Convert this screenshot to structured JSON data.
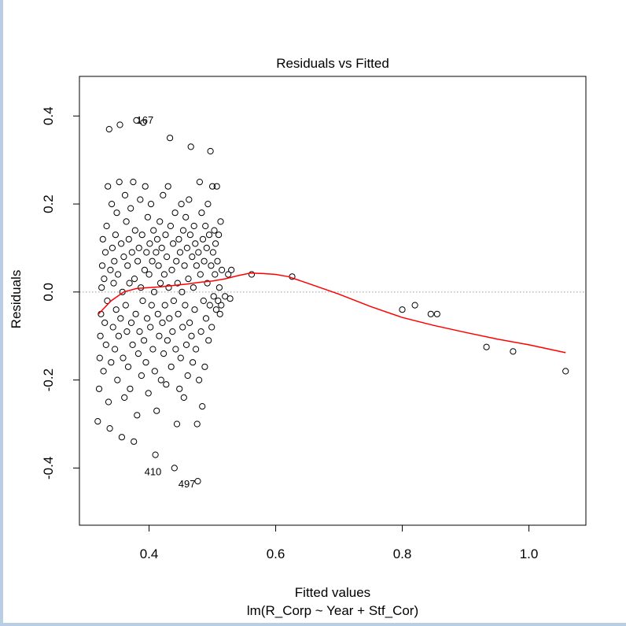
{
  "chart_data": {
    "type": "scatter",
    "title": "Residuals vs Fitted",
    "xlabel": "Fitted values",
    "subtitle": "lm(R_Corp ~ Year + Stf_Cor)",
    "ylabel": "Residuals",
    "xlim": [
      0.29,
      1.09
    ],
    "ylim": [
      -0.53,
      0.49
    ],
    "x_ticks": [
      0.4,
      0.6,
      0.8,
      1.0
    ],
    "x_tick_labels": [
      "0.4",
      "0.6",
      "0.8",
      "1.0"
    ],
    "y_ticks": [
      -0.4,
      -0.2,
      0.0,
      0.2,
      0.4
    ],
    "y_tick_labels": [
      "-0.4",
      "-0.2",
      "0.0",
      "0.2",
      "0.4"
    ],
    "reference_line_y": 0,
    "colors": {
      "points": "#000000",
      "smoother": "#ff0000",
      "reference": "#999999",
      "frame": "#b9cde5"
    },
    "annotations": [
      {
        "label": "167",
        "x": 0.39,
        "y": 0.39
      },
      {
        "label": "410",
        "x": 0.41,
        "y": -0.37
      },
      {
        "label": "497",
        "x": 0.477,
        "y": -0.43
      }
    ],
    "smoother": [
      [
        0.32,
        -0.05
      ],
      [
        0.34,
        -0.02
      ],
      [
        0.36,
        0.0
      ],
      [
        0.38,
        0.008
      ],
      [
        0.4,
        0.01
      ],
      [
        0.42,
        0.012
      ],
      [
        0.44,
        0.015
      ],
      [
        0.46,
        0.018
      ],
      [
        0.48,
        0.022
      ],
      [
        0.5,
        0.025
      ],
      [
        0.52,
        0.03
      ],
      [
        0.54,
        0.037
      ],
      [
        0.56,
        0.043
      ],
      [
        0.58,
        0.042
      ],
      [
        0.6,
        0.04
      ],
      [
        0.62,
        0.035
      ],
      [
        0.65,
        0.02
      ],
      [
        0.7,
        -0.005
      ],
      [
        0.75,
        -0.033
      ],
      [
        0.8,
        -0.058
      ],
      [
        0.85,
        -0.076
      ],
      [
        0.9,
        -0.092
      ],
      [
        0.95,
        -0.107
      ],
      [
        1.0,
        -0.12
      ],
      [
        1.058,
        -0.138
      ]
    ],
    "points": [
      [
        0.319,
        -0.294
      ],
      [
        0.321,
        -0.22
      ],
      [
        0.322,
        -0.15
      ],
      [
        0.323,
        -0.1
      ],
      [
        0.324,
        -0.05
      ],
      [
        0.325,
        0.01
      ],
      [
        0.326,
        0.06
      ],
      [
        0.327,
        0.12
      ],
      [
        0.328,
        -0.18
      ],
      [
        0.329,
        0.03
      ],
      [
        0.33,
        -0.07
      ],
      [
        0.331,
        0.09
      ],
      [
        0.332,
        -0.12
      ],
      [
        0.333,
        0.15
      ],
      [
        0.334,
        -0.02
      ],
      [
        0.335,
        0.24
      ],
      [
        0.336,
        -0.25
      ],
      [
        0.337,
        0.37
      ],
      [
        0.338,
        -0.31
      ],
      [
        0.339,
        0.05
      ],
      [
        0.34,
        -0.16
      ],
      [
        0.341,
        0.2
      ],
      [
        0.342,
        0.1
      ],
      [
        0.343,
        -0.08
      ],
      [
        0.344,
        0.02
      ],
      [
        0.345,
        0.07
      ],
      [
        0.346,
        -0.13
      ],
      [
        0.347,
        0.13
      ],
      [
        0.348,
        -0.04
      ],
      [
        0.349,
        0.18
      ],
      [
        0.35,
        -0.2
      ],
      [
        0.351,
        0.04
      ],
      [
        0.352,
        -0.1
      ],
      [
        0.353,
        0.25
      ],
      [
        0.354,
        0.38
      ],
      [
        0.355,
        -0.06
      ],
      [
        0.356,
        0.11
      ],
      [
        0.357,
        -0.33
      ],
      [
        0.358,
        0.0
      ],
      [
        0.359,
        -0.15
      ],
      [
        0.36,
        0.08
      ],
      [
        0.361,
        -0.24
      ],
      [
        0.362,
        0.22
      ],
      [
        0.363,
        -0.03
      ],
      [
        0.364,
        0.16
      ],
      [
        0.365,
        -0.09
      ],
      [
        0.366,
        0.06
      ],
      [
        0.367,
        -0.17
      ],
      [
        0.368,
        0.12
      ],
      [
        0.369,
        0.02
      ],
      [
        0.37,
        -0.22
      ],
      [
        0.371,
        0.19
      ],
      [
        0.372,
        -0.07
      ],
      [
        0.373,
        0.09
      ],
      [
        0.374,
        -0.12
      ],
      [
        0.375,
        0.25
      ],
      [
        0.376,
        -0.34
      ],
      [
        0.377,
        0.03
      ],
      [
        0.378,
        0.14
      ],
      [
        0.379,
        -0.05
      ],
      [
        0.38,
        0.39
      ],
      [
        0.381,
        -0.28
      ],
      [
        0.382,
        0.07
      ],
      [
        0.383,
        -0.14
      ],
      [
        0.384,
        0.1
      ],
      [
        0.385,
        -0.09
      ],
      [
        0.386,
        0.21
      ],
      [
        0.387,
        0.01
      ],
      [
        0.388,
        -0.19
      ],
      [
        0.389,
        0.13
      ],
      [
        0.39,
        -0.02
      ],
      [
        0.391,
        0.385
      ],
      [
        0.392,
        -0.11
      ],
      [
        0.393,
        0.05
      ],
      [
        0.394,
        0.24
      ],
      [
        0.395,
        -0.16
      ],
      [
        0.396,
        0.09
      ],
      [
        0.397,
        -0.06
      ],
      [
        0.398,
        0.17
      ],
      [
        0.399,
        -0.23
      ],
      [
        0.4,
        0.04
      ],
      [
        0.401,
        0.11
      ],
      [
        0.402,
        -0.08
      ],
      [
        0.403,
        0.2
      ],
      [
        0.404,
        -0.03
      ],
      [
        0.405,
        0.07
      ],
      [
        0.406,
        -0.13
      ],
      [
        0.407,
        0.14
      ],
      [
        0.408,
        0.0
      ],
      [
        0.409,
        -0.18
      ],
      [
        0.41,
        -0.37
      ],
      [
        0.411,
        0.09
      ],
      [
        0.412,
        -0.27
      ],
      [
        0.413,
        0.12
      ],
      [
        0.414,
        -0.05
      ],
      [
        0.415,
        0.06
      ],
      [
        0.416,
        -0.1
      ],
      [
        0.417,
        0.16
      ],
      [
        0.418,
        0.02
      ],
      [
        0.419,
        -0.2
      ],
      [
        0.42,
        0.1
      ],
      [
        0.421,
        -0.07
      ],
      [
        0.422,
        0.22
      ],
      [
        0.423,
        -0.14
      ],
      [
        0.424,
        0.04
      ],
      [
        0.425,
        -0.03
      ],
      [
        0.426,
        0.13
      ],
      [
        0.427,
        -0.21
      ],
      [
        0.428,
        0.08
      ],
      [
        0.429,
        -0.11
      ],
      [
        0.43,
        0.24
      ],
      [
        0.431,
        0.01
      ],
      [
        0.432,
        -0.06
      ],
      [
        0.433,
        0.35
      ],
      [
        0.434,
        0.15
      ],
      [
        0.435,
        -0.17
      ],
      [
        0.436,
        0.05
      ],
      [
        0.437,
        -0.09
      ],
      [
        0.438,
        0.11
      ],
      [
        0.439,
        -0.02
      ],
      [
        0.44,
        -0.4
      ],
      [
        0.441,
        0.18
      ],
      [
        0.442,
        -0.13
      ],
      [
        0.443,
        0.07
      ],
      [
        0.444,
        -0.3
      ],
      [
        0.445,
        0.02
      ],
      [
        0.446,
        -0.05
      ],
      [
        0.447,
        0.12
      ],
      [
        0.448,
        -0.22
      ],
      [
        0.449,
        0.09
      ],
      [
        0.45,
        -0.15
      ],
      [
        0.451,
        0.2
      ],
      [
        0.452,
        0.0
      ],
      [
        0.453,
        -0.08
      ],
      [
        0.454,
        0.14
      ],
      [
        0.455,
        -0.24
      ],
      [
        0.456,
        0.06
      ],
      [
        0.457,
        -0.03
      ],
      [
        0.458,
        0.17
      ],
      [
        0.459,
        -0.12
      ],
      [
        0.46,
        0.1
      ],
      [
        0.461,
        -0.19
      ],
      [
        0.462,
        0.03
      ],
      [
        0.463,
        0.21
      ],
      [
        0.464,
        -0.07
      ],
      [
        0.465,
        0.13
      ],
      [
        0.466,
        0.33
      ],
      [
        0.467,
        -0.1
      ],
      [
        0.468,
        0.08
      ],
      [
        0.469,
        -0.16
      ],
      [
        0.47,
        0.01
      ],
      [
        0.471,
        0.15
      ],
      [
        0.472,
        -0.04
      ],
      [
        0.473,
        0.11
      ],
      [
        0.474,
        -0.13
      ],
      [
        0.475,
        0.06
      ],
      [
        0.476,
        -0.3
      ],
      [
        0.477,
        -0.43
      ],
      [
        0.478,
        0.09
      ],
      [
        0.479,
        -0.2
      ],
      [
        0.48,
        0.25
      ],
      [
        0.481,
        0.04
      ],
      [
        0.482,
        -0.09
      ],
      [
        0.483,
        0.18
      ],
      [
        0.484,
        -0.26
      ],
      [
        0.485,
        0.12
      ],
      [
        0.486,
        -0.02
      ],
      [
        0.487,
        0.07
      ],
      [
        0.488,
        -0.17
      ],
      [
        0.489,
        0.15
      ],
      [
        0.49,
        -0.06
      ],
      [
        0.491,
        0.1
      ],
      [
        0.492,
        0.02
      ],
      [
        0.493,
        0.2
      ],
      [
        0.494,
        -0.11
      ],
      [
        0.495,
        0.13
      ],
      [
        0.496,
        -0.03
      ],
      [
        0.497,
        0.32
      ],
      [
        0.498,
        0.06
      ],
      [
        0.499,
        -0.08
      ],
      [
        0.5,
        0.24
      ],
      [
        0.501,
        0.09
      ],
      [
        0.502,
        -0.01
      ],
      [
        0.503,
        0.14
      ],
      [
        0.504,
        0.04
      ],
      [
        0.505,
        0.11
      ],
      [
        0.506,
        -0.04
      ],
      [
        0.507,
        0.24
      ],
      [
        0.508,
        0.07
      ],
      [
        0.509,
        -0.02
      ],
      [
        0.51,
        0.13
      ],
      [
        0.511,
        0.01
      ],
      [
        0.512,
        -0.05
      ],
      [
        0.513,
        0.16
      ],
      [
        0.514,
        -0.03
      ],
      [
        0.515,
        0.05
      ],
      [
        0.52,
        -0.01
      ],
      [
        0.525,
        0.04
      ],
      [
        0.528,
        -0.015
      ],
      [
        0.53,
        0.05
      ],
      [
        0.562,
        0.04
      ],
      [
        0.626,
        0.035
      ],
      [
        0.8,
        -0.04
      ],
      [
        0.82,
        -0.03
      ],
      [
        0.845,
        -0.05
      ],
      [
        0.855,
        -0.05
      ],
      [
        0.933,
        -0.125
      ],
      [
        0.975,
        -0.135
      ],
      [
        1.058,
        -0.18
      ]
    ]
  }
}
